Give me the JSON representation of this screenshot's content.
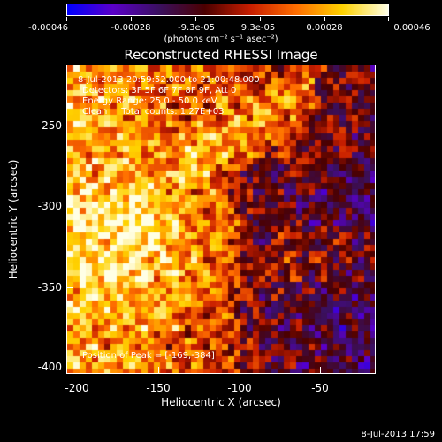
{
  "colorbar": {
    "ticks": [
      "-0.00046",
      "-0.00028",
      "-9.3e-05",
      "9.3e-05",
      "0.00028",
      "0.00046"
    ],
    "units": "(photons cm⁻² s⁻¹ asec⁻²)",
    "colors": [
      "#0000ff",
      "#5a00c8",
      "#3a1060",
      "#4b0000",
      "#c81e00",
      "#ff6e00",
      "#ffd200",
      "#ffffe6"
    ]
  },
  "title": "Reconstructed RHESSI Image",
  "info": {
    "line1": "8-Jul-2013 20:59:52.000 to 21:00:48.000",
    "line2": "Detectors: 3F 5F 6F 7F 8F 9F, Att 0",
    "line3": "Energy Range: 25.0 - 50.0 keV",
    "line4": "Clean     Total counts: 1.27E+03"
  },
  "peak_label": "Position of Peak = [-169,-384]",
  "axes": {
    "xlabel": "Heliocentric X (arcsec)",
    "ylabel": "Heliocentric Y (arcsec)",
    "xticks": [
      "-200",
      "-150",
      "-100",
      "-50"
    ],
    "yticks": [
      "-250",
      "-300",
      "-350",
      "-400"
    ]
  },
  "timestamp": "8-Jul-2013 17:59"
}
